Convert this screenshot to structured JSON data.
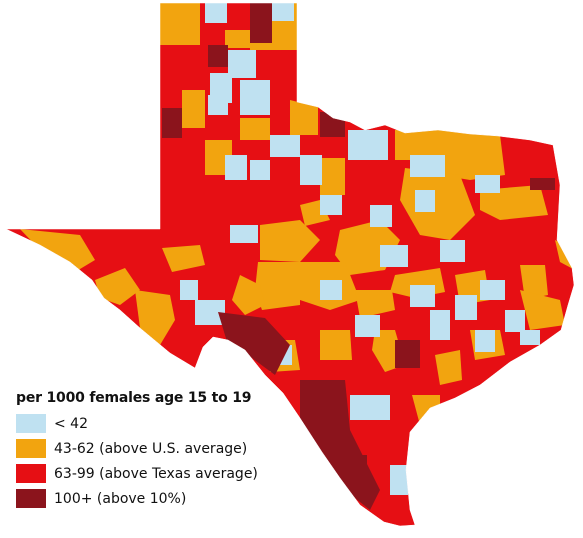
{
  "legend": {
    "title": "per 1000 females age 15 to 19",
    "items": [
      {
        "key": "low",
        "label": "< 42",
        "color": "#bfe1f1"
      },
      {
        "key": "above-us",
        "label": "43-62 (above U.S. average)",
        "color": "#f2a40f"
      },
      {
        "key": "above-texas",
        "label": "63-99 (above Texas average)",
        "color": "#e60f14"
      },
      {
        "key": "very-high",
        "label": "100+ (above 10%)",
        "color": "#8b141c"
      }
    ]
  }
}
